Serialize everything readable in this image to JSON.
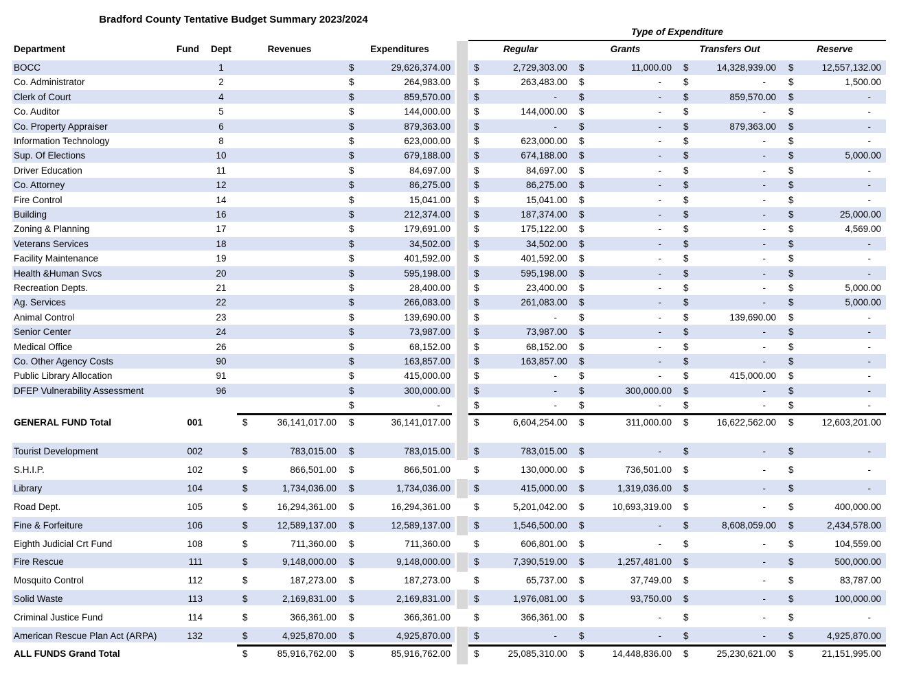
{
  "title": "Bradford County Tentative Budget Summary 2023/2024",
  "expenditure_group_header": "Type of Expenditure",
  "columns": {
    "department": "Department",
    "fund": "Fund",
    "dept": "Dept",
    "revenues": "Revenues",
    "expenditures": "Expenditures",
    "regular": "Regular",
    "grants": "Grants",
    "transfers_out": "Transfers Out",
    "reserve": "Reserve"
  },
  "colors": {
    "row_band": "#d9e1f2",
    "divider": "#d8d8d8",
    "rule": "#0a0a0a"
  },
  "general_fund_rows": [
    {
      "name": "BOCC",
      "dept": "1",
      "revenues": null,
      "expenditures": "29,626,374.00",
      "regular": "2,729,303.00",
      "grants": "11,000.00",
      "transfers_out": "14,328,939.00",
      "reserve": "12,557,132.00"
    },
    {
      "name": "Co. Administrator",
      "dept": "2",
      "revenues": null,
      "expenditures": "264,983.00",
      "regular": "263,483.00",
      "grants": "-",
      "transfers_out": "-",
      "reserve": "1,500.00"
    },
    {
      "name": "Clerk of Court",
      "dept": "4",
      "revenues": null,
      "expenditures": "859,570.00",
      "regular": "-",
      "grants": "-",
      "transfers_out": "859,570.00",
      "reserve": "-"
    },
    {
      "name": "Co. Auditor",
      "dept": "5",
      "revenues": null,
      "expenditures": "144,000.00",
      "regular": "144,000.00",
      "grants": "-",
      "transfers_out": "-",
      "reserve": "-"
    },
    {
      "name": "Co. Property Appraiser",
      "dept": "6",
      "revenues": null,
      "expenditures": "879,363.00",
      "regular": "-",
      "grants": "-",
      "transfers_out": "879,363.00",
      "reserve": "-"
    },
    {
      "name": "Information Technology",
      "dept": "8",
      "revenues": null,
      "expenditures": "623,000.00",
      "regular": "623,000.00",
      "grants": "-",
      "transfers_out": "-",
      "reserve": "-"
    },
    {
      "name": "Sup. Of Elections",
      "dept": "10",
      "revenues": null,
      "expenditures": "679,188.00",
      "regular": "674,188.00",
      "grants": "-",
      "transfers_out": "-",
      "reserve": "5,000.00"
    },
    {
      "name": "Driver Education",
      "dept": "11",
      "revenues": null,
      "expenditures": "84,697.00",
      "regular": "84,697.00",
      "grants": "-",
      "transfers_out": "-",
      "reserve": "-"
    },
    {
      "name": "Co. Attorney",
      "dept": "12",
      "revenues": null,
      "expenditures": "86,275.00",
      "regular": "86,275.00",
      "grants": "-",
      "transfers_out": "-",
      "reserve": "-"
    },
    {
      "name": "Fire Control",
      "dept": "14",
      "revenues": null,
      "expenditures": "15,041.00",
      "regular": "15,041.00",
      "grants": "-",
      "transfers_out": "-",
      "reserve": "-"
    },
    {
      "name": "Building",
      "dept": "16",
      "revenues": null,
      "expenditures": "212,374.00",
      "regular": "187,374.00",
      "grants": "-",
      "transfers_out": "-",
      "reserve": "25,000.00"
    },
    {
      "name": "Zoning & Planning",
      "dept": "17",
      "revenues": null,
      "expenditures": "179,691.00",
      "regular": "175,122.00",
      "grants": "-",
      "transfers_out": "-",
      "reserve": "4,569.00"
    },
    {
      "name": "Veterans Services",
      "dept": "18",
      "revenues": null,
      "expenditures": "34,502.00",
      "regular": "34,502.00",
      "grants": "-",
      "transfers_out": "-",
      "reserve": "-"
    },
    {
      "name": "Facility Maintenance",
      "dept": "19",
      "revenues": null,
      "expenditures": "401,592.00",
      "regular": "401,592.00",
      "grants": "-",
      "transfers_out": "-",
      "reserve": "-"
    },
    {
      "name": "Health &Human Svcs",
      "dept": "20",
      "revenues": null,
      "expenditures": "595,198.00",
      "regular": "595,198.00",
      "grants": "-",
      "transfers_out": "-",
      "reserve": "-"
    },
    {
      "name": "Recreation Depts.",
      "dept": "21",
      "revenues": null,
      "expenditures": "28,400.00",
      "regular": "23,400.00",
      "grants": "-",
      "transfers_out": "-",
      "reserve": "5,000.00"
    },
    {
      "name": "Ag. Services",
      "dept": "22",
      "revenues": null,
      "expenditures": "266,083.00",
      "regular": "261,083.00",
      "grants": "-",
      "transfers_out": "-",
      "reserve": "5,000.00"
    },
    {
      "name": "Animal Control",
      "dept": "23",
      "revenues": null,
      "expenditures": "139,690.00",
      "regular": "-",
      "grants": "-",
      "transfers_out": "139,690.00",
      "reserve": "-"
    },
    {
      "name": "Senior Center",
      "dept": "24",
      "revenues": null,
      "expenditures": "73,987.00",
      "regular": "73,987.00",
      "grants": "-",
      "transfers_out": "-",
      "reserve": "-"
    },
    {
      "name": "Medical Office",
      "dept": "26",
      "revenues": null,
      "expenditures": "68,152.00",
      "regular": "68,152.00",
      "grants": "-",
      "transfers_out": "-",
      "reserve": "-"
    },
    {
      "name": "Co. Other Agency Costs",
      "dept": "90",
      "revenues": null,
      "expenditures": "163,857.00",
      "regular": "163,857.00",
      "grants": "-",
      "transfers_out": "-",
      "reserve": "-"
    },
    {
      "name": "Public Library Allocation",
      "dept": "91",
      "revenues": null,
      "expenditures": "415,000.00",
      "regular": "-",
      "grants": "-",
      "transfers_out": "415,000.00",
      "reserve": "-"
    },
    {
      "name": "DFEP Vulnerability Assessment",
      "dept": "96",
      "revenues": null,
      "expenditures": "300,000.00",
      "regular": "-",
      "grants": "300,000.00",
      "transfers_out": "-",
      "reserve": "-"
    },
    {
      "name": "",
      "dept": "",
      "revenues": null,
      "expenditures": "-",
      "regular": "-",
      "grants": "-",
      "transfers_out": "-",
      "reserve": "-"
    }
  ],
  "general_fund_total": {
    "name": "GENERAL FUND Total",
    "fund": "001",
    "revenues": "36,141,017.00",
    "expenditures": "36,141,017.00",
    "regular": "6,604,254.00",
    "grants": "311,000.00",
    "transfers_out": "16,622,562.00",
    "reserve": "12,603,201.00"
  },
  "other_fund_rows": [
    {
      "name": "Tourist Development",
      "fund": "002",
      "revenues": "783,015.00",
      "expenditures": "783,015.00",
      "regular": "783,015.00",
      "grants": "-",
      "transfers_out": "-",
      "reserve": "-"
    },
    {
      "name": "S.H.I.P.",
      "fund": "102",
      "revenues": "866,501.00",
      "expenditures": "866,501.00",
      "regular": "130,000.00",
      "grants": "736,501.00",
      "transfers_out": "-",
      "reserve": "-"
    },
    {
      "name": "Library",
      "fund": "104",
      "revenues": "1,734,036.00",
      "expenditures": "1,734,036.00",
      "regular": "415,000.00",
      "grants": "1,319,036.00",
      "transfers_out": "-",
      "reserve": "-"
    },
    {
      "name": "Road Dept.",
      "fund": "105",
      "revenues": "16,294,361.00",
      "expenditures": "16,294,361.00",
      "regular": "5,201,042.00",
      "grants": "10,693,319.00",
      "transfers_out": "-",
      "reserve": "400,000.00"
    },
    {
      "name": "Fine & Forfeiture",
      "fund": "106",
      "revenues": "12,589,137.00",
      "expenditures": "12,589,137.00",
      "regular": "1,546,500.00",
      "grants": "-",
      "transfers_out": "8,608,059.00",
      "reserve": "2,434,578.00"
    },
    {
      "name": "Eighth Judicial Crt Fund",
      "fund": "108",
      "revenues": "711,360.00",
      "expenditures": "711,360.00",
      "regular": "606,801.00",
      "grants": "-",
      "transfers_out": "-",
      "reserve": "104,559.00"
    },
    {
      "name": "Fire Rescue",
      "fund": "111",
      "revenues": "9,148,000.00",
      "expenditures": "9,148,000.00",
      "regular": "7,390,519.00",
      "grants": "1,257,481.00",
      "transfers_out": "-",
      "reserve": "500,000.00"
    },
    {
      "name": "Mosquito Control",
      "fund": "112",
      "revenues": "187,273.00",
      "expenditures": "187,273.00",
      "regular": "65,737.00",
      "grants": "37,749.00",
      "transfers_out": "-",
      "reserve": "83,787.00"
    },
    {
      "name": "Solid Waste",
      "fund": "113",
      "revenues": "2,169,831.00",
      "expenditures": "2,169,831.00",
      "regular": "1,976,081.00",
      "grants": "93,750.00",
      "transfers_out": "-",
      "reserve": "100,000.00"
    },
    {
      "name": "Criminal Justice Fund",
      "fund": "114",
      "revenues": "366,361.00",
      "expenditures": "366,361.00",
      "regular": "366,361.00",
      "grants": "-",
      "transfers_out": "-",
      "reserve": "-"
    },
    {
      "name": "American Rescue Plan Act (ARPA)",
      "fund": "132",
      "revenues": "4,925,870.00",
      "expenditures": "4,925,870.00",
      "regular": "-",
      "grants": "-",
      "transfers_out": "-",
      "reserve": "4,925,870.00"
    }
  ],
  "grand_total": {
    "name": "ALL FUNDS Grand Total",
    "fund": "",
    "revenues": "85,916,762.00",
    "expenditures": "85,916,762.00",
    "regular": "25,085,310.00",
    "grants": "14,448,836.00",
    "transfers_out": "25,230,621.00",
    "reserve": "21,151,995.00"
  }
}
